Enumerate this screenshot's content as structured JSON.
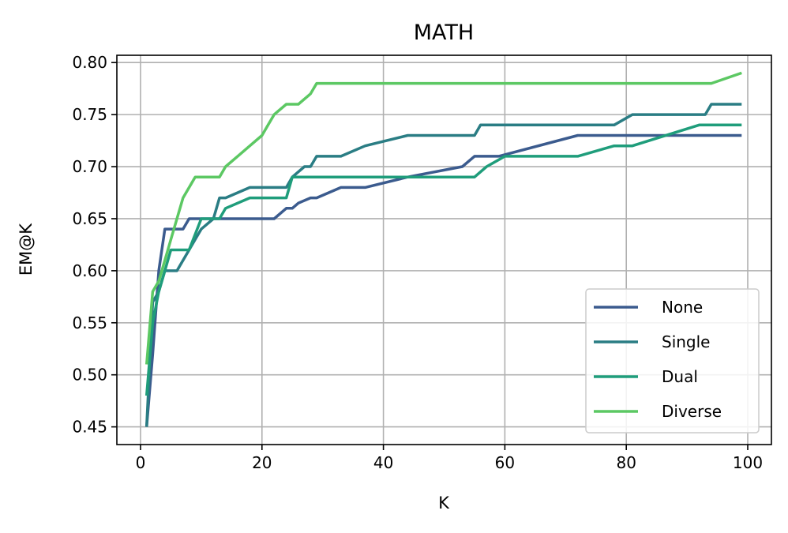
{
  "chart_data": {
    "type": "line",
    "title": "MATH",
    "xlabel": "K",
    "ylabel": "EM@K",
    "xlim": [
      -3.9,
      103.9
    ],
    "ylim": [
      0.433,
      0.807
    ],
    "xticks": [
      "0",
      "20",
      "40",
      "60",
      "80",
      "100"
    ],
    "yticks": [
      "0.45",
      "0.50",
      "0.55",
      "0.60",
      "0.65",
      "0.70",
      "0.75",
      "0.80"
    ],
    "grid": true,
    "legend_position": "lower right",
    "series": [
      {
        "name": "None",
        "color": "#3b5b8e",
        "points": [
          [
            1,
            0.45
          ],
          [
            2,
            0.52
          ],
          [
            3,
            0.6
          ],
          [
            4,
            0.64
          ],
          [
            5,
            0.64
          ],
          [
            7,
            0.64
          ],
          [
            8,
            0.65
          ],
          [
            22,
            0.65
          ],
          [
            24,
            0.66
          ],
          [
            25,
            0.66
          ],
          [
            26,
            0.665
          ],
          [
            28,
            0.67
          ],
          [
            29,
            0.67
          ],
          [
            33,
            0.68
          ],
          [
            37,
            0.68
          ],
          [
            44,
            0.69
          ],
          [
            53,
            0.7
          ],
          [
            55,
            0.71
          ],
          [
            59,
            0.71
          ],
          [
            72,
            0.73
          ],
          [
            99,
            0.73
          ]
        ]
      },
      {
        "name": "Single",
        "color": "#2a7d84",
        "points": [
          [
            1,
            0.45
          ],
          [
            2,
            0.57
          ],
          [
            3,
            0.58
          ],
          [
            4,
            0.6
          ],
          [
            5,
            0.6
          ],
          [
            6,
            0.6
          ],
          [
            8,
            0.62
          ],
          [
            9,
            0.63
          ],
          [
            10,
            0.64
          ],
          [
            12,
            0.65
          ],
          [
            13,
            0.67
          ],
          [
            14,
            0.67
          ],
          [
            18,
            0.68
          ],
          [
            24,
            0.68
          ],
          [
            25,
            0.69
          ],
          [
            27,
            0.7
          ],
          [
            28,
            0.7
          ],
          [
            29,
            0.71
          ],
          [
            33,
            0.71
          ],
          [
            37,
            0.72
          ],
          [
            44,
            0.73
          ],
          [
            55,
            0.73
          ],
          [
            56,
            0.74
          ],
          [
            78,
            0.74
          ],
          [
            81,
            0.75
          ],
          [
            93,
            0.75
          ],
          [
            94,
            0.76
          ],
          [
            99,
            0.76
          ]
        ]
      },
      {
        "name": "Dual",
        "color": "#1f9d7b",
        "points": [
          [
            1,
            0.48
          ],
          [
            2,
            0.55
          ],
          [
            3,
            0.58
          ],
          [
            4,
            0.6
          ],
          [
            5,
            0.62
          ],
          [
            8,
            0.62
          ],
          [
            10,
            0.65
          ],
          [
            13,
            0.65
          ],
          [
            14,
            0.66
          ],
          [
            18,
            0.67
          ],
          [
            24,
            0.67
          ],
          [
            25,
            0.69
          ],
          [
            55,
            0.69
          ],
          [
            57,
            0.7
          ],
          [
            60,
            0.71
          ],
          [
            72,
            0.71
          ],
          [
            78,
            0.72
          ],
          [
            81,
            0.72
          ],
          [
            92,
            0.74
          ],
          [
            99,
            0.74
          ]
        ]
      },
      {
        "name": "Diverse",
        "color": "#5cc863",
        "points": [
          [
            1,
            0.51
          ],
          [
            2,
            0.58
          ],
          [
            3,
            0.59
          ],
          [
            4,
            0.61
          ],
          [
            5,
            0.63
          ],
          [
            7,
            0.67
          ],
          [
            9,
            0.69
          ],
          [
            13,
            0.69
          ],
          [
            14,
            0.7
          ],
          [
            16,
            0.71
          ],
          [
            18,
            0.72
          ],
          [
            20,
            0.73
          ],
          [
            21,
            0.74
          ],
          [
            22,
            0.75
          ],
          [
            24,
            0.76
          ],
          [
            25,
            0.76
          ],
          [
            26,
            0.76
          ],
          [
            28,
            0.77
          ],
          [
            29,
            0.78
          ],
          [
            94,
            0.78
          ],
          [
            99,
            0.79
          ]
        ]
      }
    ]
  }
}
